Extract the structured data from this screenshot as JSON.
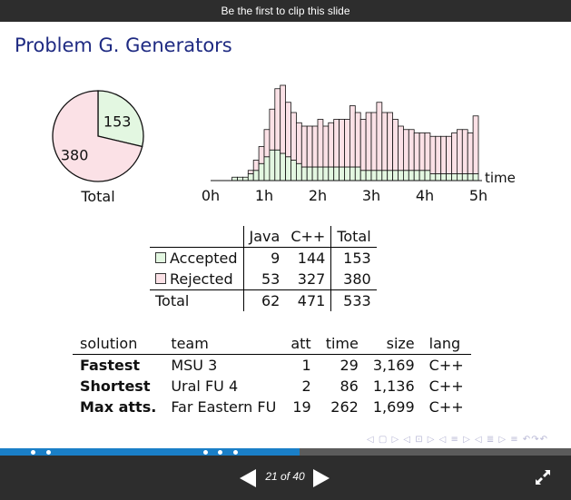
{
  "clip_banner": "Be the first to clip this slide",
  "slide": {
    "title": "Problem G. Generators"
  },
  "colors": {
    "accepted": "#e3f7e1",
    "rejected": "#fbe1e6",
    "title": "#1e2a82",
    "progress": "#1a7fc7"
  },
  "chart_data": [
    {
      "type": "pie",
      "labels": [
        "Accepted",
        "Rejected"
      ],
      "values": [
        153,
        380
      ],
      "slice_labels": [
        "153",
        "380"
      ],
      "caption": "Total"
    },
    {
      "type": "bar",
      "stacked": true,
      "xlabel": "time",
      "tick_labels": [
        "0h",
        "1h",
        "2h",
        "3h",
        "4h",
        "5h"
      ],
      "bins": 50,
      "series": [
        {
          "name": "Accepted",
          "values": [
            0,
            0,
            0,
            0,
            1,
            1,
            1,
            2,
            3,
            5,
            7,
            9,
            9,
            8,
            7,
            6,
            5,
            4,
            4,
            4,
            4,
            4,
            4,
            4,
            4,
            4,
            4,
            4,
            3,
            3,
            3,
            3,
            3,
            3,
            3,
            3,
            3,
            3,
            3,
            3,
            3,
            2,
            2,
            2,
            2,
            2,
            2,
            2,
            2,
            2
          ]
        },
        {
          "name": "Rejected",
          "values": [
            0,
            0,
            0,
            0,
            0,
            0,
            0,
            1,
            3,
            5,
            8,
            12,
            18,
            20,
            16,
            14,
            12,
            12,
            12,
            12,
            14,
            12,
            13,
            14,
            14,
            14,
            18,
            16,
            15,
            17,
            17,
            20,
            17,
            17,
            15,
            13,
            12,
            12,
            11,
            11,
            11,
            11,
            11,
            11,
            11,
            12,
            13,
            13,
            12,
            17
          ]
        }
      ]
    }
  ],
  "summary_table": {
    "headers": [
      "",
      "Java",
      "C++",
      "Total"
    ],
    "rows": [
      {
        "label": "Accepted",
        "java": "9",
        "cpp": "144",
        "total": "153"
      },
      {
        "label": "Rejected",
        "java": "53",
        "cpp": "327",
        "total": "380"
      }
    ],
    "footer": {
      "label": "Total",
      "java": "62",
      "cpp": "471",
      "total": "533"
    }
  },
  "solutions_table": {
    "headers": [
      "solution",
      "team",
      "att",
      "time",
      "size",
      "lang"
    ],
    "rows": [
      {
        "solution": "Fastest",
        "team": "MSU 3",
        "att": "1",
        "time": "29",
        "size": "3,169",
        "lang": "C++"
      },
      {
        "solution": "Shortest",
        "team": "Ural FU 4",
        "att": "2",
        "time": "86",
        "size": "1,136",
        "lang": "C++"
      },
      {
        "solution": "Max atts.",
        "team": "Far Eastern FU",
        "att": "19",
        "time": "262",
        "size": "1,699",
        "lang": "C++"
      }
    ]
  },
  "beamer_nav": "◁ ▢ ▷  ◁ ⊡ ▷  ◁ ≡ ▷  ◁ ≣ ▷   ≡   ↶↷↶",
  "player": {
    "page_counter": "21 of 40",
    "progress_fraction": 0.525,
    "prev_icon": "triangle-left",
    "next_icon": "triangle-right",
    "fullscreen_icon": "expand-arrows"
  }
}
